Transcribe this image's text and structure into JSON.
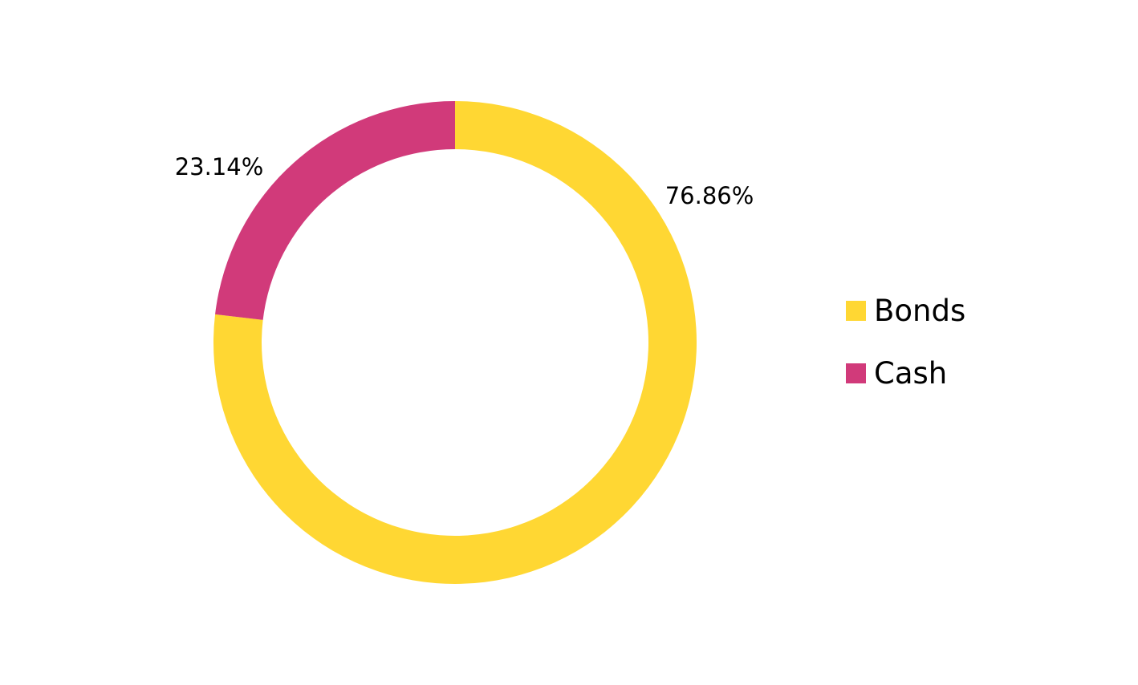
{
  "chart_data": {
    "type": "pie",
    "title": "",
    "donut": true,
    "slices": [
      {
        "name": "Bonds",
        "value": 76.86,
        "label": "76.86%",
        "color": "#FFD733"
      },
      {
        "name": "Cash",
        "value": 23.14,
        "label": "23.14%",
        "color": "#D13A7A"
      }
    ],
    "legend_position": "right"
  }
}
